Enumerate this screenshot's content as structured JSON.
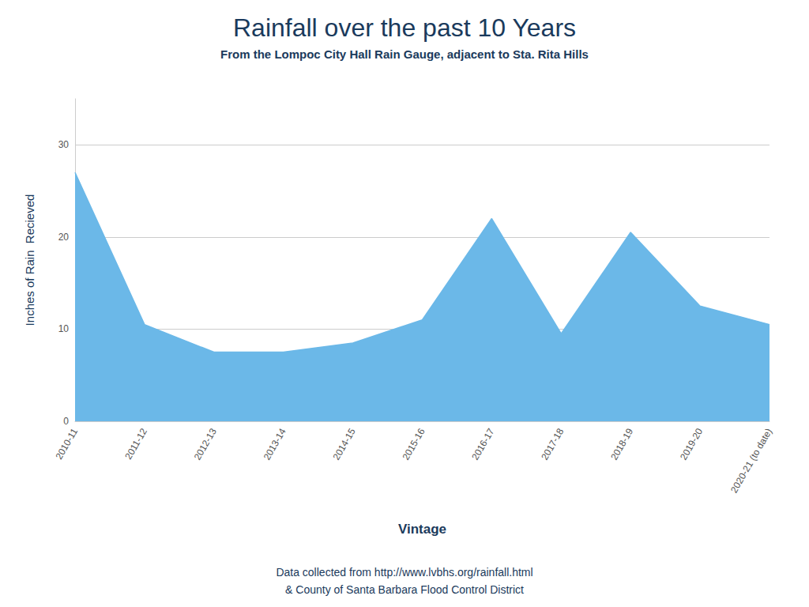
{
  "chart_data": {
    "type": "area",
    "title": "Rainfall over the past 10 Years",
    "subtitle": "From the Lompoc City Hall Rain Gauge, adjacent to Sta. Rita Hills",
    "xlabel": "Vintage",
    "ylabel": "Inches of Rain  Recieved",
    "annotations": [
      "Data collected from http://www.lvbhs.org/rainfall.html",
      "& County of Santa Barbara Flood Control District"
    ],
    "categories": [
      "2010-11",
      "2011-12",
      "2012-13",
      "2013-14",
      "2014-15",
      "2015-16",
      "2016-17",
      "2017-18",
      "2018-19",
      "2019-20",
      "2020-21 (to date)"
    ],
    "values": [
      27.0,
      10.5,
      7.5,
      7.5,
      8.5,
      11.0,
      22.0,
      9.5,
      20.5,
      12.5,
      10.5
    ],
    "color": "#6BB8E8",
    "ylim": [
      0,
      35
    ],
    "yticks": [
      0,
      10,
      20,
      30
    ],
    "grid": true
  }
}
